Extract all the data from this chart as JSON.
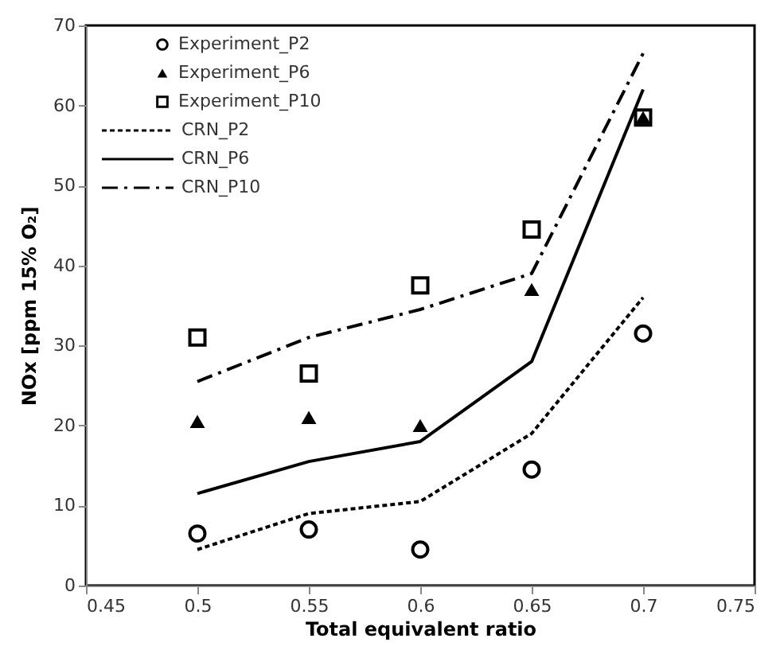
{
  "chart_data": {
    "type": "scatter",
    "x": [
      0.5,
      0.55,
      0.6,
      0.65,
      0.7
    ],
    "xlabel": "Total equivalent ratio",
    "ylabel": "NOx [ppm 15% O₂]",
    "xlim": [
      0.45,
      0.75
    ],
    "xticks": [
      0.45,
      0.5,
      0.55,
      0.6,
      0.65,
      0.7,
      0.75
    ],
    "ylim": [
      0,
      70
    ],
    "yticks": [
      0,
      10,
      20,
      30,
      40,
      50,
      60,
      70
    ],
    "grid": false,
    "legend": "top left",
    "series": [
      {
        "name": "Experiment_P2",
        "marker": "circle",
        "color": "#000000",
        "values": [
          6.5,
          7,
          4.5,
          14.5,
          31.5
        ]
      },
      {
        "name": "Experiment_P6",
        "marker": "triangle",
        "color": "#000000",
        "values": [
          20.5,
          21,
          20,
          37,
          58.5
        ]
      },
      {
        "name": "Experiment_P10",
        "marker": "square",
        "color": "#000000",
        "values": [
          31,
          26.5,
          37.5,
          44.5,
          58.5
        ]
      },
      {
        "name": "CRN_P2",
        "type": "line",
        "line_style": "dotted",
        "color": "#000000",
        "values": [
          4.5,
          9,
          10.5,
          19,
          36
        ]
      },
      {
        "name": "CRN_P6",
        "type": "line",
        "line_style": "solid",
        "color": "#000000",
        "values": [
          11.5,
          15.5,
          18,
          28,
          62
        ]
      },
      {
        "name": "CRN_P10",
        "type": "line",
        "line_style": "dashdot",
        "color": "#000000",
        "values": [
          25.5,
          31,
          34.5,
          39,
          66.5
        ]
      }
    ]
  }
}
